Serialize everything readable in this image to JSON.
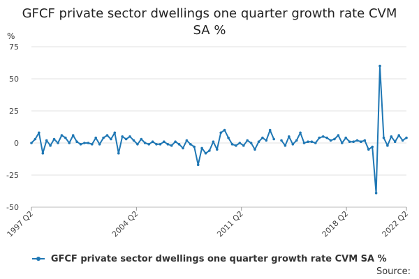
{
  "chart_data": {
    "type": "line",
    "title_line1": "GFCF private sector dwellings one quarter growth rate CVM",
    "title_line2": "SA %",
    "ylabel": "%",
    "ylim": [
      -50,
      75
    ],
    "yticks": [
      75,
      50,
      25,
      0,
      -25,
      -50
    ],
    "xticks": [
      "1997 Q2",
      "2004 Q2",
      "2011 Q2",
      "2018 Q2",
      "2022 Q2"
    ],
    "x_start": "1997 Q2",
    "x_end": "2022 Q2",
    "grid": true,
    "legend_position": "bottom",
    "series": [
      {
        "name": "GFCF private sector dwellings one quarter growth rate CVM SA %",
        "color": "#1f77b4",
        "values": [
          0,
          3,
          8,
          -8,
          2,
          -2,
          3,
          0,
          6,
          4,
          0,
          6,
          1,
          -1,
          0,
          0,
          -1,
          4,
          -1,
          4,
          6,
          3,
          8,
          -8,
          5,
          3,
          5,
          2,
          -1,
          3,
          0,
          -1,
          1,
          -1,
          -1,
          1,
          -1,
          -2,
          1,
          -1,
          -4,
          2,
          -1,
          -3,
          -17,
          -4,
          -8,
          -6,
          1,
          -5,
          8,
          10,
          4,
          -1,
          -2,
          0,
          -2,
          2,
          0,
          -5,
          1,
          4,
          2,
          10,
          3,
          null,
          2,
          -2,
          5,
          -1,
          2,
          8,
          0,
          1,
          1,
          0,
          4,
          5,
          4,
          2,
          3,
          6,
          0,
          4,
          1,
          1,
          2,
          1,
          2,
          -5,
          -3,
          -39,
          60,
          4,
          -2,
          5,
          1,
          6,
          2,
          4
        ]
      }
    ]
  },
  "footer": {
    "source_label": "Source:"
  }
}
